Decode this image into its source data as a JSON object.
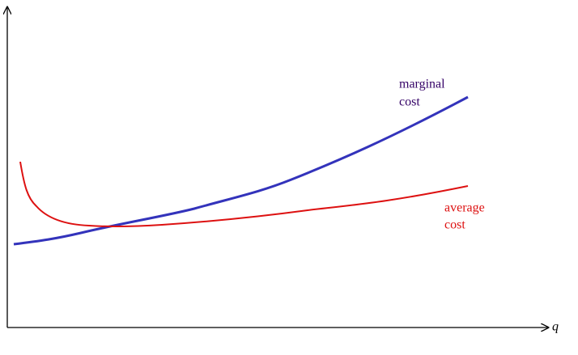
{
  "axes": {
    "x_label": "q"
  },
  "curves": [
    {
      "label_lines": [
        "marginal",
        "cost"
      ]
    },
    {
      "label_lines": [
        "average",
        "cost"
      ]
    }
  ]
}
